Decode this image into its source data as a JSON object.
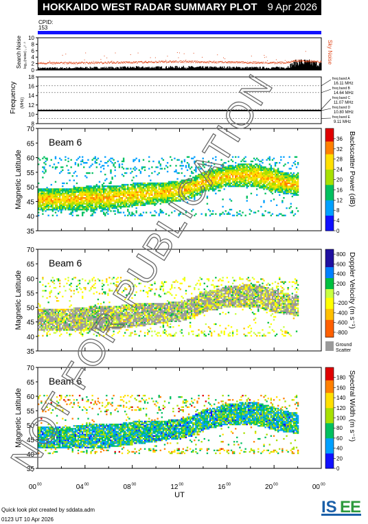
{
  "header": {
    "title": "HOKKAIDO WEST RADAR SUMMARY PLOT",
    "date": "9 Apr 2026",
    "cpid_label": "CPID:",
    "cpid_value": "153"
  },
  "watermark": "NOT FOR PUBLICATION",
  "x_axis": {
    "label": "UT",
    "ticks": [
      "00",
      "04",
      "08",
      "12",
      "16",
      "20",
      "00"
    ],
    "tick_sup": "00",
    "range_hours": [
      0,
      24
    ]
  },
  "colors": {
    "noise_sky": "#e0481c",
    "noise_search": "#000000",
    "cpid": "#1212ff",
    "ground_scatter": "#9a9a9a"
  },
  "chart_data": [
    {
      "type": "line",
      "panel": "noise",
      "ylabel": "Search Noise",
      "ylabel_sub": "log₁₀(noise) ₁ ₀² ·³",
      "right_label": "Sky Noise",
      "ylim": [
        0,
        10
      ],
      "yticks": [
        "0",
        "2",
        "4",
        "6",
        "8",
        "10"
      ],
      "series": [
        {
          "name": "Sky Noise",
          "x": [
            0,
            2,
            4,
            6,
            8,
            10,
            12,
            14,
            16,
            18,
            20,
            21,
            22,
            23,
            24
          ],
          "values": [
            2.2,
            2.3,
            2.3,
            2.4,
            2.5,
            2.6,
            2.7,
            2.6,
            2.5,
            2.4,
            2.3,
            2.4,
            3.0,
            2.8,
            2.6
          ]
        },
        {
          "name": "Search Noise",
          "x": [
            0,
            2,
            4,
            6,
            8,
            10,
            12,
            14,
            16,
            18,
            20,
            21,
            22,
            23,
            24
          ],
          "values": [
            0.6,
            0.6,
            0.7,
            0.7,
            0.8,
            0.8,
            0.9,
            0.8,
            0.8,
            0.7,
            0.7,
            0.8,
            2.5,
            2.2,
            1.8
          ]
        }
      ]
    },
    {
      "type": "line",
      "panel": "frequency",
      "ylabel": "Frequency",
      "ylabel_sub": "(MHz)",
      "ylim": [
        8,
        18
      ],
      "yticks": [
        "8",
        "10",
        "12",
        "14",
        "16",
        "18"
      ],
      "bands": [
        {
          "label": "freq band A",
          "value_label": "16.11 MHz",
          "mhz": 16.11
        },
        {
          "label": "freq band B",
          "value_label": "14.64 MHz",
          "mhz": 14.64
        },
        {
          "label": "freq band C",
          "value_label": "11.07 MHz",
          "mhz": 11.07
        },
        {
          "label": "freq band D",
          "value_label": "10.80 MHz",
          "mhz": 10.8
        },
        {
          "label": "freq band E",
          "value_label": "9.11 MHz",
          "mhz": 9.11
        }
      ],
      "operating_mhz": 10.8
    },
    {
      "type": "heatmap",
      "panel": "power",
      "beam_label": "Beam  6",
      "ylabel": "Magnetic Latitude",
      "ylim": [
        35,
        70
      ],
      "yticks": [
        "35",
        "40",
        "45",
        "50",
        "55",
        "60",
        "65",
        "70"
      ],
      "colorbar": {
        "label": "Backscatter Power (dB)",
        "ticks": [
          "0",
          "4",
          "8",
          "12",
          "16",
          "20",
          "24",
          "28",
          "32",
          "36"
        ],
        "range": [
          0,
          40
        ]
      },
      "scatter_region": {
        "ut": [
          0,
          2,
          4,
          6,
          8,
          10,
          12,
          13,
          14,
          16,
          18,
          20,
          21.5
        ],
        "lower_mlat": [
          42,
          42,
          42,
          42,
          43,
          44,
          45,
          46,
          48,
          50,
          50,
          48,
          47
        ],
        "upper_mlat": [
          49,
          49,
          50,
          50,
          51,
          51,
          52,
          53,
          55,
          57,
          58,
          56,
          54
        ],
        "core_value": 18
      }
    },
    {
      "type": "heatmap",
      "panel": "velocity",
      "beam_label": "Beam  6",
      "ylabel": "Magnetic Latitude",
      "ylim": [
        35,
        70
      ],
      "yticks": [
        "35",
        "40",
        "45",
        "50",
        "55",
        "60",
        "65",
        "70"
      ],
      "colorbar": {
        "label": "Doppler Velocity (m s⁻¹)",
        "ticks": [
          "-800",
          "-600",
          "-400",
          "-200",
          "0",
          "200",
          "400",
          "600",
          "800"
        ],
        "range": [
          -900,
          900
        ],
        "ground_label": "Ground",
        "ground_label2": "Scatter"
      },
      "scatter_region": {
        "ut": [
          0,
          2,
          4,
          6,
          8,
          10,
          12,
          13,
          14,
          16,
          18,
          20,
          21.5
        ],
        "lower_mlat": [
          42,
          42,
          42,
          42,
          43,
          44,
          45,
          46,
          48,
          50,
          50,
          48,
          47
        ],
        "upper_mlat": [
          49,
          49,
          50,
          50,
          51,
          51,
          52,
          53,
          55,
          57,
          58,
          56,
          54
        ],
        "core_value": 0
      }
    },
    {
      "type": "heatmap",
      "panel": "width",
      "beam_label": "Beam  6",
      "ylabel": "Magnetic Latitude",
      "ylim": [
        35,
        70
      ],
      "yticks": [
        "35",
        "40",
        "45",
        "50",
        "55",
        "60",
        "65",
        "70"
      ],
      "colorbar": {
        "label": "Spectral Width (m s⁻¹)",
        "ticks": [
          "0",
          "20",
          "40",
          "60",
          "80",
          "100",
          "120",
          "140",
          "160",
          "180"
        ],
        "range": [
          0,
          200
        ]
      },
      "scatter_region": {
        "ut": [
          0,
          2,
          4,
          6,
          8,
          10,
          12,
          13,
          14,
          16,
          18,
          20,
          21.5
        ],
        "lower_mlat": [
          42,
          42,
          42,
          42,
          43,
          44,
          45,
          46,
          48,
          50,
          50,
          48,
          47
        ],
        "upper_mlat": [
          49,
          49,
          50,
          50,
          51,
          51,
          52,
          53,
          55,
          57,
          58,
          56,
          54
        ],
        "core_value": 30
      }
    }
  ],
  "footer": {
    "credit": "Quick look plot created by sddata.adm",
    "timestamp": "0123 UT 10 Apr 2026",
    "logo_text": "ISEE"
  }
}
